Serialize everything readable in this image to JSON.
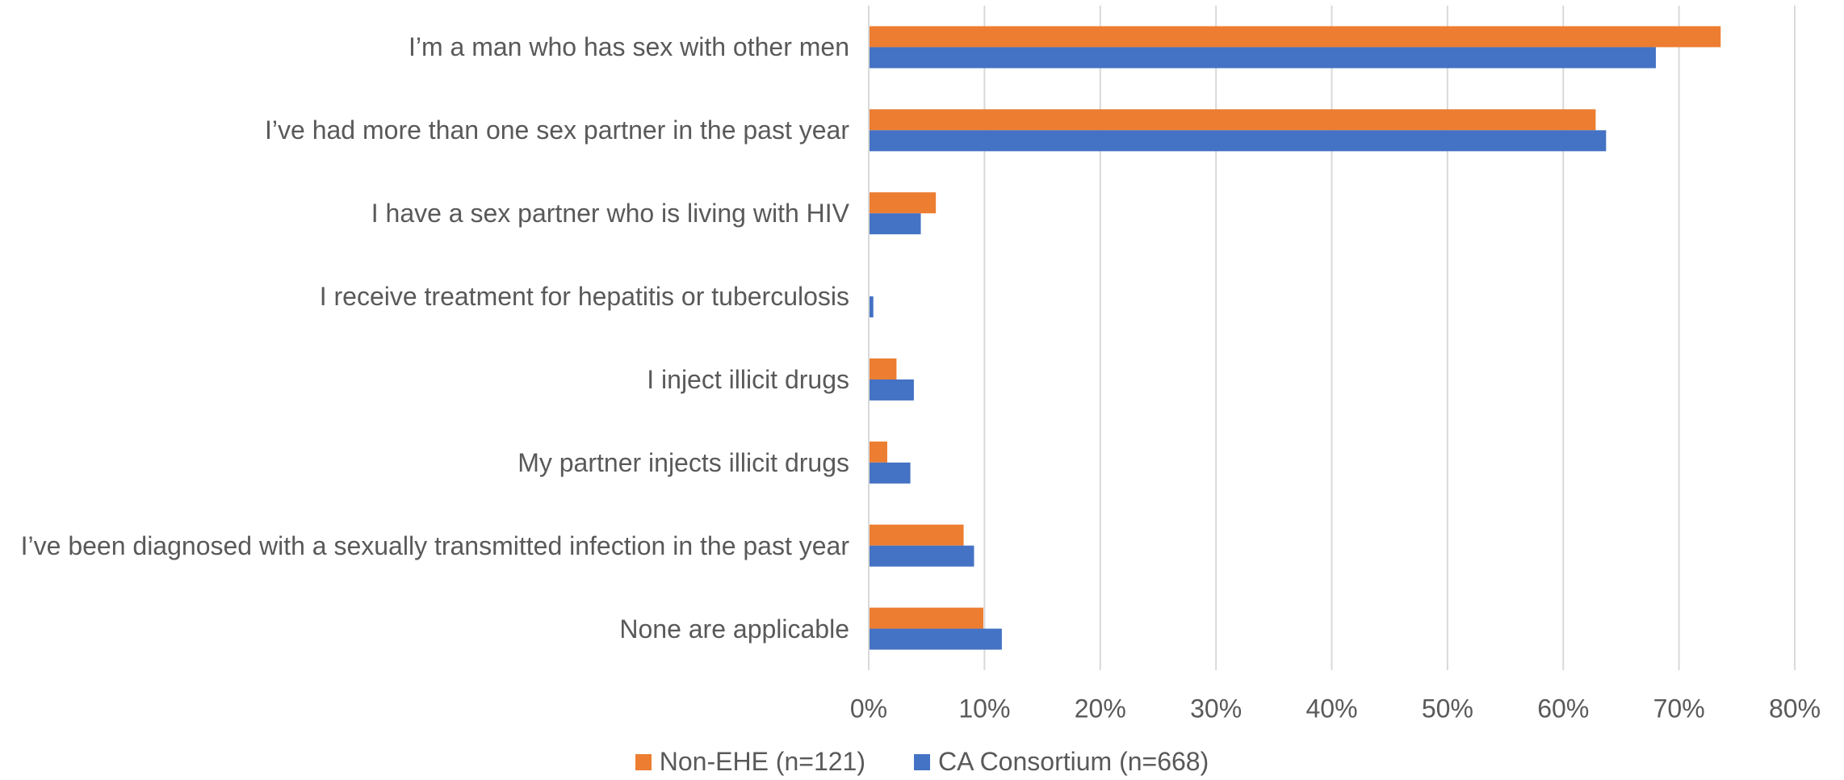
{
  "chart_data": {
    "type": "bar",
    "orientation": "horizontal",
    "categories": [
      "I’m a man who has sex with other men",
      "I’ve had more than one sex partner in the past year",
      "I have a sex partner who is living with HIV",
      "I receive treatment for hepatitis or tuberculosis",
      "I inject illicit drugs",
      "My partner injects illicit drugs",
      "I’ve been diagnosed with a sexually transmitted infection in the past year",
      "None are applicable"
    ],
    "series": [
      {
        "name": "Non-EHE (n=121)",
        "color": "#ed7d31",
        "values": [
          73.6,
          62.8,
          5.8,
          0,
          2.4,
          1.6,
          8.2,
          9.9
        ]
      },
      {
        "name": "CA Consortium (n=668)",
        "color": "#4472c4",
        "values": [
          68.0,
          63.7,
          4.5,
          0.4,
          3.9,
          3.6,
          9.1,
          11.5
        ]
      }
    ],
    "xlim": [
      0,
      80
    ],
    "xticks": [
      {
        "value": 0,
        "label": "0%"
      },
      {
        "value": 10,
        "label": "10%"
      },
      {
        "value": 20,
        "label": "20%"
      },
      {
        "value": 30,
        "label": "30%"
      },
      {
        "value": 40,
        "label": "40%"
      },
      {
        "value": 50,
        "label": "50%"
      },
      {
        "value": 60,
        "label": "60%"
      },
      {
        "value": 70,
        "label": "70%"
      },
      {
        "value": 80,
        "label": "80%"
      }
    ],
    "grid": true,
    "legend": "bottom"
  }
}
